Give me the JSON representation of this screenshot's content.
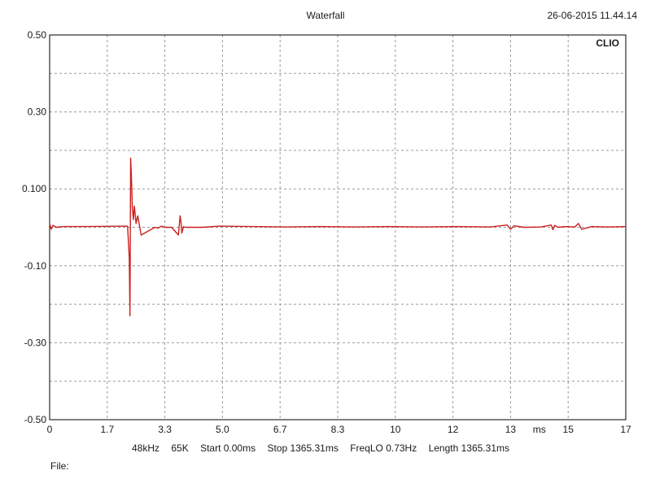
{
  "header": {
    "title": "Waterfall",
    "timestamp": "26-06-2015 11.44.14",
    "brand": "CLIO"
  },
  "info": {
    "sample_rate": "48kHz",
    "size": "65K",
    "start": "Start 0.00ms",
    "stop": "Stop 1365.31ms",
    "freqlo": "FreqLO 0.73Hz",
    "length": "Length 1365.31ms"
  },
  "footer": {
    "file_label": "File:"
  },
  "colors": {
    "trace": "#cc1f1f",
    "grid": "#9a9a9a",
    "frame": "#000000",
    "background": "#ffffff"
  },
  "chart_data": {
    "type": "line",
    "title": "Waterfall",
    "xlabel": "ms",
    "ylabel": "",
    "xlim": [
      0,
      17
    ],
    "ylim": [
      -0.5,
      0.5
    ],
    "grid": true,
    "x_ticks": [
      "0",
      "1.7",
      "3.3",
      "5.0",
      "6.7",
      "8.3",
      "10",
      "12",
      "13",
      "15",
      "17"
    ],
    "y_ticks": [
      "0.50",
      "0.30",
      "0.100",
      "-0.10",
      "-0.30",
      "-0.50"
    ],
    "series": [
      {
        "x": [
          0,
          0.05,
          0.1,
          0.2,
          0.4,
          1.0,
          2.3,
          2.35,
          2.37,
          2.39,
          2.41,
          2.44,
          2.47,
          2.5,
          2.55,
          2.6,
          2.65,
          2.7,
          2.8,
          2.9,
          3.0,
          3.1,
          3.2,
          3.3,
          3.4,
          3.6,
          3.7,
          3.8,
          3.85,
          3.88,
          3.9,
          3.95,
          4.0,
          4.5,
          5.0,
          6.0,
          7.0,
          8.0,
          9.0,
          10.0,
          11.0,
          12.0,
          13.0,
          13.5,
          13.6,
          13.7,
          14.0,
          14.5,
          14.8,
          14.85,
          14.9,
          15.0,
          15.2,
          15.5,
          15.6,
          15.7,
          16.0,
          16.5,
          17.0
        ],
        "y": [
          0.01,
          -0.005,
          0.005,
          0.0,
          0.002,
          0.002,
          0.003,
          -0.08,
          -0.23,
          0.18,
          0.14,
          0.05,
          0.02,
          0.055,
          0.01,
          0.03,
          0.005,
          -0.02,
          -0.015,
          -0.01,
          -0.005,
          0.0,
          -0.002,
          0.003,
          0.0,
          0.0,
          -0.01,
          -0.02,
          0.03,
          0.01,
          -0.015,
          0.002,
          0.0,
          0.0,
          0.003,
          0.002,
          0.001,
          0.002,
          0.001,
          0.002,
          0.001,
          0.002,
          0.001,
          0.006,
          -0.005,
          0.004,
          0.0,
          0.001,
          0.006,
          -0.006,
          0.005,
          0.0,
          0.002,
          0.001,
          0.01,
          -0.005,
          0.002,
          0.001,
          0.002
        ]
      }
    ]
  }
}
